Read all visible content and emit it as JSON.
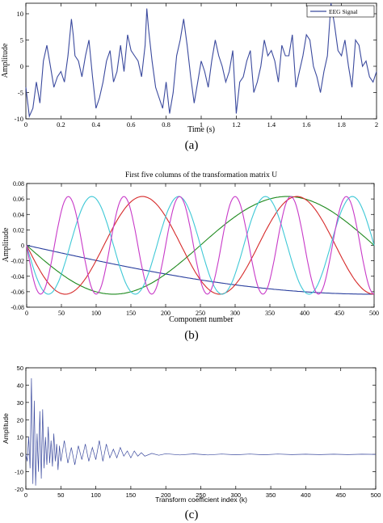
{
  "chart_data": [
    {
      "type": "line",
      "panel_label": "(a)",
      "title": "",
      "xlabel": "Time (s)",
      "ylabel": "Amplitude",
      "xlim": [
        0,
        2
      ],
      "ylim": [
        -10,
        12
      ],
      "xticks": [
        0,
        0.2,
        0.4,
        0.6,
        0.8,
        1,
        1.2,
        1.4,
        1.6,
        1.8,
        2
      ],
      "xtick_labels": [
        "0",
        "0.2",
        "0.4",
        "0.6",
        "0.8",
        "1",
        "1.2",
        "1.4",
        "1.6",
        "1.8",
        "2"
      ],
      "yticks": [
        -10,
        -5,
        0,
        5,
        10
      ],
      "ytick_labels": [
        "-10",
        "-5",
        "0",
        "5",
        "10"
      ],
      "grid": false,
      "legend": {
        "position": "top-right",
        "entries": [
          "EEG Signal"
        ]
      },
      "series": [
        {
          "name": "EEG Signal",
          "color": "#3b4a9e",
          "x": [
            0,
            0.02,
            0.04,
            0.06,
            0.08,
            0.1,
            0.12,
            0.14,
            0.16,
            0.18,
            0.2,
            0.22,
            0.24,
            0.26,
            0.27,
            0.28,
            0.3,
            0.32,
            0.34,
            0.36,
            0.38,
            0.4,
            0.42,
            0.44,
            0.46,
            0.48,
            0.5,
            0.52,
            0.54,
            0.56,
            0.58,
            0.6,
            0.62,
            0.64,
            0.66,
            0.68,
            0.69,
            0.7,
            0.72,
            0.74,
            0.76,
            0.78,
            0.8,
            0.82,
            0.84,
            0.86,
            0.88,
            0.9,
            0.92,
            0.94,
            0.96,
            0.98,
            1.0,
            1.02,
            1.04,
            1.06,
            1.08,
            1.1,
            1.12,
            1.14,
            1.16,
            1.18,
            1.2,
            1.22,
            1.24,
            1.26,
            1.28,
            1.3,
            1.32,
            1.34,
            1.36,
            1.38,
            1.4,
            1.42,
            1.44,
            1.46,
            1.48,
            1.5,
            1.52,
            1.54,
            1.56,
            1.58,
            1.6,
            1.62,
            1.64,
            1.66,
            1.68,
            1.7,
            1.72,
            1.74,
            1.76,
            1.78,
            1.8,
            1.82,
            1.84,
            1.86,
            1.88,
            1.9,
            1.92,
            1.94,
            1.96,
            1.98,
            2.0
          ],
          "y": [
            -4,
            -9.5,
            -8,
            -3,
            -7,
            1,
            4,
            0,
            -4,
            -2,
            -1,
            -3,
            2,
            9,
            6,
            2,
            1,
            -2,
            2,
            5,
            -2,
            -8,
            -6,
            -3,
            1,
            3,
            -3,
            -1,
            4,
            -1,
            6,
            3,
            2,
            1,
            -2,
            4,
            11,
            7,
            1,
            -4,
            -6,
            -8,
            -3,
            -9,
            -5,
            2,
            5,
            9,
            4,
            -2,
            -7,
            -3,
            1,
            -1,
            -4,
            1,
            5,
            2,
            0,
            -3,
            -1,
            3,
            -9,
            -3,
            -2,
            1,
            3,
            -5,
            -3,
            0,
            5,
            2,
            3,
            1,
            -3,
            4,
            2,
            2,
            6,
            -4,
            -1,
            2,
            6,
            5,
            0,
            -2,
            -5,
            -1,
            2,
            12,
            8,
            3,
            2,
            5,
            0,
            -4,
            5,
            4,
            0,
            1,
            -2,
            -3,
            -1
          ]
        }
      ]
    },
    {
      "type": "line",
      "panel_label": "(b)",
      "title": "First five columns of the transformation matrix U",
      "xlabel": "Component number",
      "ylabel": "Amplitude",
      "xlim": [
        0,
        500
      ],
      "ylim": [
        -0.08,
        0.08
      ],
      "xticks": [
        0,
        50,
        100,
        150,
        200,
        250,
        300,
        350,
        400,
        450,
        500
      ],
      "xtick_labels": [
        "0",
        "50",
        "100",
        "150",
        "200",
        "250",
        "300",
        "350",
        "400",
        "450",
        "500"
      ],
      "yticks": [
        -0.08,
        -0.06,
        -0.04,
        -0.02,
        0,
        0.02,
        0.04,
        0.06,
        0.08
      ],
      "ytick_labels": [
        "-0.08",
        "-0.06",
        "-0.04",
        "-0.02",
        "0",
        "0.02",
        "0.04",
        "0.06",
        "0.08"
      ],
      "grid": false,
      "series": [
        {
          "color": "#2a3f9e",
          "amplitude": 0.0632,
          "frequency_index": 1
        },
        {
          "color": "#1e8a1e",
          "amplitude": 0.0632,
          "frequency_index": 2
        },
        {
          "color": "#d62a2a",
          "amplitude": 0.0632,
          "frequency_index": 3
        },
        {
          "color": "#3ec8d6",
          "amplitude": 0.0632,
          "frequency_index": 4
        },
        {
          "color": "#c83ac8",
          "amplitude": 0.0632,
          "frequency_index": 5
        }
      ]
    },
    {
      "type": "line",
      "panel_label": "(c)",
      "title": "",
      "xlabel": "Transform coefficient index (k)",
      "ylabel": "Amplitude",
      "xlim": [
        0,
        500
      ],
      "ylim": [
        -20,
        50
      ],
      "xticks": [
        0,
        50,
        100,
        150,
        200,
        250,
        300,
        350,
        400,
        450,
        500
      ],
      "xtick_labels": [
        "0",
        "50",
        "100",
        "150",
        "200",
        "250",
        "300",
        "350",
        "400",
        "450",
        "500"
      ],
      "yticks": [
        -20,
        -10,
        0,
        10,
        20,
        30,
        40,
        50
      ],
      "ytick_labels": [
        "-20",
        "-10",
        "0",
        "10",
        "20",
        "30",
        "40",
        "50"
      ],
      "grid": false,
      "series": [
        {
          "color": "#3b4a9e",
          "x": [
            0,
            2,
            4,
            6,
            8,
            10,
            12,
            14,
            16,
            18,
            20,
            22,
            24,
            26,
            28,
            30,
            32,
            34,
            36,
            38,
            40,
            42,
            44,
            46,
            48,
            50,
            55,
            60,
            65,
            70,
            75,
            80,
            85,
            90,
            95,
            100,
            105,
            110,
            115,
            120,
            125,
            130,
            135,
            140,
            145,
            150,
            155,
            160,
            165,
            170,
            180,
            190,
            200,
            220,
            240,
            260,
            280,
            300,
            320,
            340,
            360,
            380,
            400,
            420,
            440,
            460,
            480,
            500
          ],
          "y": [
            0,
            -4,
            10,
            -8,
            44,
            -17,
            31,
            -18,
            12,
            -10,
            25,
            -14,
            26,
            -8,
            10,
            -6,
            16,
            -5,
            8,
            -7,
            12,
            -4,
            6,
            -9,
            5,
            -4,
            8,
            -5,
            4,
            -6,
            5,
            -3,
            6,
            -4,
            4,
            -3,
            8,
            -4,
            6,
            -2,
            3,
            -2,
            4,
            -1,
            2,
            -2,
            2,
            -1,
            1,
            -1,
            0.6,
            -0.5,
            0.4,
            -0.3,
            0.3,
            -0.3,
            0.2,
            -0.2,
            0.2,
            -0.2,
            0.2,
            -0.1,
            0.1,
            -0.1,
            0.1,
            -0.1,
            0.1,
            0
          ]
        }
      ]
    }
  ]
}
